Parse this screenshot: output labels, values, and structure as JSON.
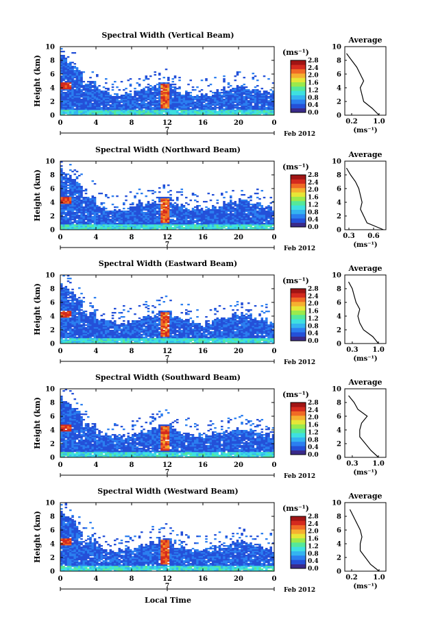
{
  "figure": {
    "xlabel": "Local Time",
    "date_label": "Feb 2012",
    "day_label": "7",
    "colorbar_unit": "(ms⁻¹)",
    "colorbar_ticks": [
      "0.0",
      "0.4",
      "0.8",
      "1.2",
      "1.6",
      "2.0",
      "2.4",
      "2.8"
    ],
    "colormap": [
      "#3a2a8a",
      "#2450d8",
      "#2b7ff0",
      "#34b4f0",
      "#3ee0e0",
      "#55e89a",
      "#9bea4c",
      "#e6e637",
      "#f5b030",
      "#f06a25",
      "#d42a1e",
      "#a01414"
    ],
    "avg_title": "Average",
    "avg_xlabel": "(ms⁻¹)"
  },
  "chart_data": [
    {
      "type": "heatmap",
      "title": "Spectral Width (Vertical Beam)",
      "ylabel": "Height (km)",
      "xlim": [
        0,
        24
      ],
      "ylim": [
        0,
        10
      ],
      "xticks": [
        "0",
        "4",
        "8",
        "12",
        "16",
        "20",
        "0"
      ],
      "yticks": [
        "0",
        "2",
        "4",
        "6",
        "8",
        "10"
      ],
      "avg_profile": {
        "xticks": [
          "0.2",
          "1.0"
        ],
        "xlim": [
          0.0,
          1.2
        ],
        "heights": [
          0,
          1,
          2,
          3,
          4,
          5,
          6,
          7,
          8,
          9
        ],
        "values": [
          1.0,
          0.8,
          0.55,
          0.5,
          0.45,
          0.55,
          0.45,
          0.35,
          0.2,
          0.05
        ]
      }
    },
    {
      "type": "heatmap",
      "title": "Spectral Width (Northward Beam)",
      "ylabel": "Height (km)",
      "xlim": [
        0,
        24
      ],
      "ylim": [
        0,
        10
      ],
      "xticks": [
        "0",
        "4",
        "8",
        "12",
        "16",
        "20",
        "0"
      ],
      "yticks": [
        "0",
        "2",
        "4",
        "6",
        "8",
        "10"
      ],
      "avg_profile": {
        "xticks": [
          "0.3",
          "0.6"
        ],
        "xlim": [
          0.25,
          0.75
        ],
        "heights": [
          0,
          1,
          2,
          3,
          4,
          5,
          6,
          7,
          8,
          9
        ],
        "values": [
          0.72,
          0.52,
          0.48,
          0.44,
          0.46,
          0.44,
          0.42,
          0.38,
          0.32,
          0.27
        ]
      }
    },
    {
      "type": "heatmap",
      "title": "Spectral Width (Eastward Beam)",
      "ylabel": "Height (km)",
      "xlim": [
        0,
        24
      ],
      "ylim": [
        0,
        10
      ],
      "xticks": [
        "0",
        "4",
        "8",
        "12",
        "16",
        "20",
        "0"
      ],
      "yticks": [
        "0",
        "2",
        "4",
        "6",
        "8",
        "10"
      ],
      "avg_profile": {
        "xticks": [
          "0.3",
          "1.0"
        ],
        "xlim": [
          0.1,
          1.2
        ],
        "heights": [
          0,
          1,
          2,
          3,
          4,
          5,
          6,
          7,
          8,
          9
        ],
        "values": [
          1.0,
          0.85,
          0.6,
          0.5,
          0.45,
          0.5,
          0.4,
          0.35,
          0.3,
          0.2
        ]
      }
    },
    {
      "type": "heatmap",
      "title": "Spectral Width (Southward Beam)",
      "ylabel": "Height (km)",
      "xlim": [
        0,
        24
      ],
      "ylim": [
        0,
        10
      ],
      "xticks": [
        "0",
        "4",
        "8",
        "12",
        "16",
        "20",
        "0"
      ],
      "yticks": [
        "0",
        "2",
        "4",
        "6",
        "8",
        "10"
      ],
      "avg_profile": {
        "xticks": [
          "0.3",
          "1.0"
        ],
        "xlim": [
          0.1,
          1.2
        ],
        "heights": [
          0,
          1,
          2,
          3,
          4,
          5,
          6,
          7,
          8,
          9
        ],
        "values": [
          1.0,
          0.8,
          0.65,
          0.5,
          0.5,
          0.55,
          0.7,
          0.45,
          0.35,
          0.2
        ]
      }
    },
    {
      "type": "heatmap",
      "title": "Spectral Width (Westward Beam)",
      "ylabel": "Height (km)",
      "xlim": [
        0,
        24
      ],
      "ylim": [
        0,
        10
      ],
      "xticks": [
        "0",
        "4",
        "8",
        "12",
        "16",
        "20",
        "0"
      ],
      "yticks": [
        "0",
        "2",
        "4",
        "6",
        "8",
        "10"
      ],
      "avg_profile": {
        "xticks": [
          "0.2",
          "1.0"
        ],
        "xlim": [
          0.0,
          1.2
        ],
        "heights": [
          0,
          1,
          2,
          3,
          4,
          5,
          6,
          7,
          8,
          9
        ],
        "values": [
          1.0,
          0.75,
          0.6,
          0.45,
          0.45,
          0.5,
          0.45,
          0.35,
          0.25,
          0.15
        ]
      }
    }
  ]
}
